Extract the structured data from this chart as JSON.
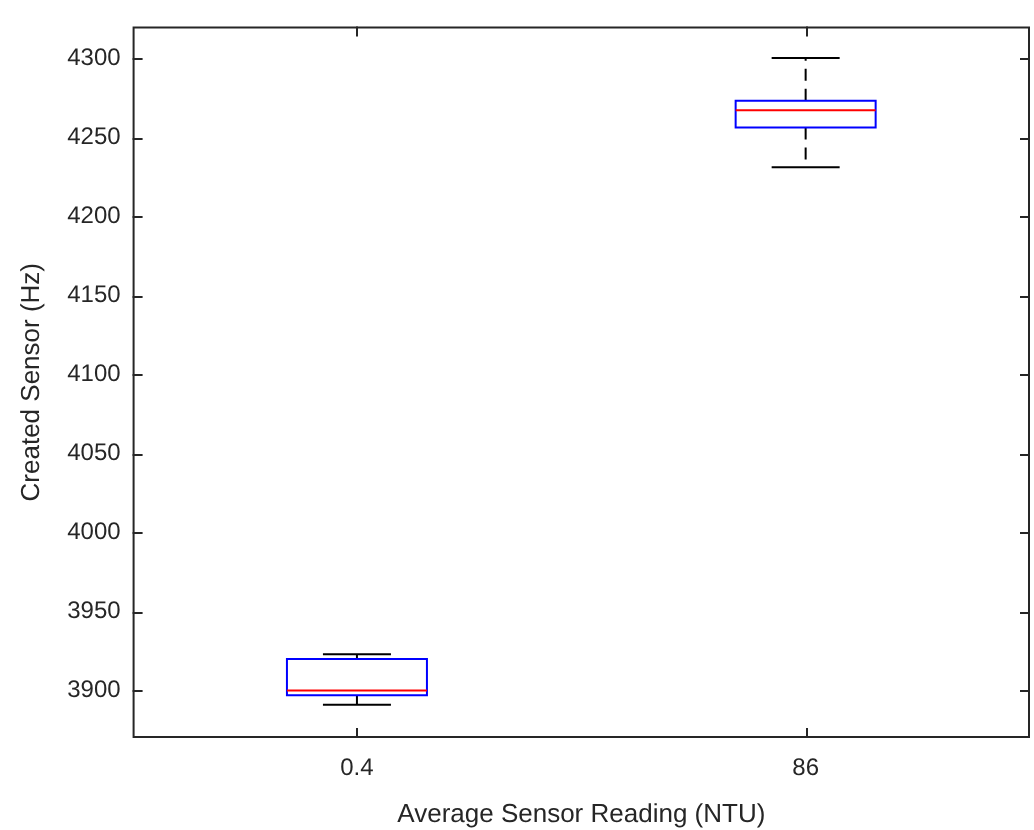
{
  "chart_data": {
    "type": "box",
    "xlabel": "Average Sensor Reading (NTU)",
    "ylabel": "Created Sensor (Hz)",
    "categories": [
      "0.4",
      "86"
    ],
    "series": [
      {
        "color": "#0000ff",
        "boxes": [
          {
            "low": 3891,
            "q1": 3897,
            "median": 3900,
            "q3": 3920,
            "high": 3923
          },
          {
            "low": 4231,
            "q1": 4256,
            "median": 4267,
            "q3": 4273,
            "high": 4300
          }
        ]
      }
    ],
    "ylim": [
      3870,
      4320
    ],
    "yticks": [
      3900,
      3950,
      4000,
      4050,
      4100,
      4150,
      4200,
      4250,
      4300
    ],
    "grid": false,
    "legend": false
  }
}
